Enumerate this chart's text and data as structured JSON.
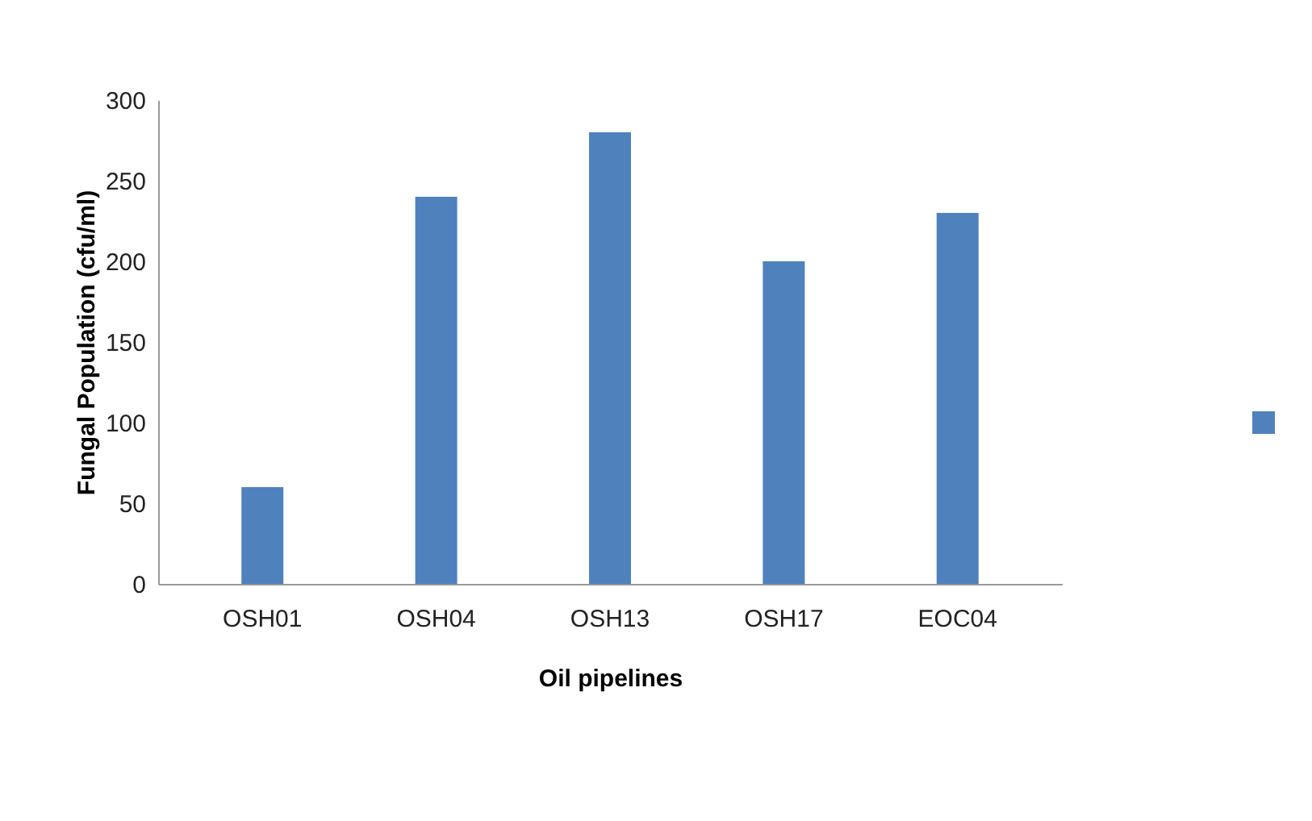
{
  "chart_data": {
    "type": "bar",
    "xlabel": "Oil pipelines",
    "ylabel": "Fungal Population  (cfu/ml)",
    "categories": [
      "OSH01",
      "OSH04",
      "OSH13",
      "OSH17",
      "EOC04"
    ],
    "series": [
      {
        "color": "#4f81bd",
        "values": [
          60,
          240,
          280,
          200,
          230
        ]
      }
    ],
    "ylim": [
      0,
      300
    ],
    "yticks": [
      0,
      50,
      100,
      150,
      200,
      250,
      300
    ],
    "grid": false
  }
}
